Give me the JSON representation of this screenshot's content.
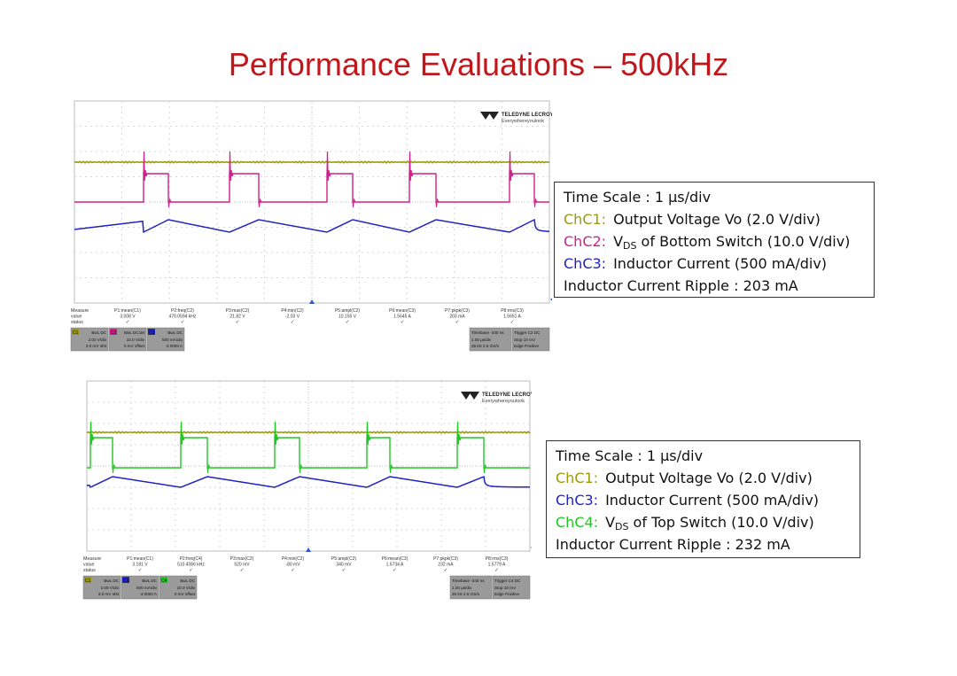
{
  "title": "Performance Evaluations – 500kHz",
  "colors": {
    "title": "#c0171c",
    "ch1": "#9a9a0a",
    "ch2": "#d0208a",
    "ch3": "#2222c0",
    "ch4": "#22c822"
  },
  "brand": {
    "name": "TELEDYNE LECROY",
    "tagline": "Everywhereyoulook"
  },
  "scope1": {
    "measure_labels": [
      "Measure",
      "value",
      "status"
    ],
    "params": [
      {
        "name": "P1:mean(C1)",
        "value": "3.008 V"
      },
      {
        "name": "P2:freq(C2)",
        "value": "470.0594 kHz"
      },
      {
        "name": "P3:max(C2)",
        "value": "21.82 V"
      },
      {
        "name": "P4:min(C2)",
        "value": "-2.03 V"
      },
      {
        "name": "P5:ampl(C2)",
        "value": "10.155 V"
      },
      {
        "name": "P6:mean(C3)",
        "value": "1.5645 A"
      },
      {
        "name": "P7:pkpk(C3)",
        "value": "203 mA"
      },
      {
        "name": "P8:rms(C3)",
        "value": "1.5651 A"
      }
    ],
    "channels": [
      {
        "id": "C1",
        "l1": "BwL DC",
        "l2": "2.00 V/div",
        "l3": "3.0 mV ofst"
      },
      {
        "id": "C2",
        "l1": "BwL DC1M",
        "l2": "10.0 V/div",
        "l3": "0 mV offset"
      },
      {
        "id": "C3",
        "l1": "BwL DC",
        "l2": "500 mA/div",
        "l3": "-3.0000 A"
      }
    ],
    "timebase": {
      "l1": "Timebase  -340 ns",
      "l2": "1.00 µs/div",
      "l3": "25 kS   2.5 GS/s"
    },
    "trigger": {
      "l1": "Trigger   C2 DC",
      "l2": "Stop   10 mV",
      "l3": "Edge  Positive"
    }
  },
  "scope2": {
    "measure_labels": [
      "Measure",
      "value",
      "status"
    ],
    "params": [
      {
        "name": "P1:mean(C1)",
        "value": "3.181 V"
      },
      {
        "name": "P2:freq(C4)",
        "value": "510.4066 kHz"
      },
      {
        "name": "P3:max(C2)",
        "value": "520 mV"
      },
      {
        "name": "P4:min(C2)",
        "value": "-80 mV"
      },
      {
        "name": "P5:ampl(C2)",
        "value": "340 mV"
      },
      {
        "name": "P6:mean(C3)",
        "value": "1.5734 A"
      },
      {
        "name": "P7:pkpk(C3)",
        "value": "232 mA"
      },
      {
        "name": "P8:rms(C3)",
        "value": "1.5779 A"
      }
    ],
    "channels": [
      {
        "id": "C1",
        "l1": "BwL DC",
        "l2": "2.00 V/div",
        "l3": "3.0 mV ofst"
      },
      {
        "id": "C3",
        "l1": "BwL DC",
        "l2": "500 mA/div",
        "l3": "-3.0000 A"
      },
      {
        "id": "C4",
        "l1": "BwL DC",
        "l2": "10.0 V/div",
        "l3": "0 mV offset"
      }
    ],
    "timebase": {
      "l1": "Timebase  -340 ns",
      "l2": "1.00 µs/div",
      "l3": "25 kS   2.5 GS/s"
    },
    "trigger": {
      "l1": "Trigger   C4 DC",
      "l2": "Stop   10 mV",
      "l3": "Edge  Positive"
    }
  },
  "legend1": {
    "time_scale": "Time Scale : 1 µs/div",
    "c1_label": "ChC1:",
    "c1_text": "Output Voltage Vo (2.0 V/div)",
    "c2_label": "ChC2:",
    "c2_v": "V",
    "c2_sub": "DS",
    "c2_text": " of Bottom Switch (10.0 V/div)",
    "c3_label": "ChC3:",
    "c3_text": "Inductor Current (500 mA/div)",
    "ripple": "Inductor Current Ripple : 203 mA"
  },
  "legend2": {
    "time_scale": "Time Scale :   1 µs/div",
    "c1_label": "ChC1:",
    "c1_text": "Output Voltage Vo (2.0 V/div)",
    "c3_label": "ChC3:",
    "c3_text": "Inductor Current (500 mA/div)",
    "c4_label": "ChC4:",
    "c4_v": "V",
    "c4_sub": "DS",
    "c4_text": " of Top Switch (10.0 V/div)",
    "ripple": "Inductor Current Ripple : 232 mA"
  }
}
